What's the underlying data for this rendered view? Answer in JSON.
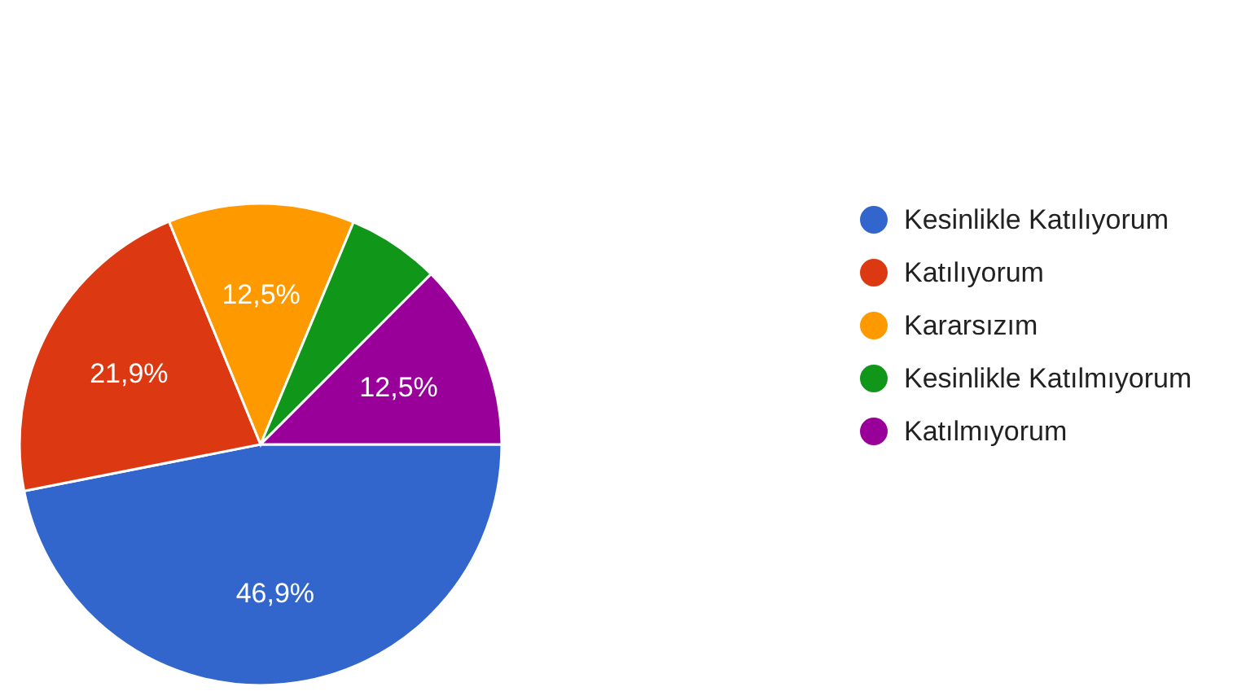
{
  "chart_data": {
    "type": "pie",
    "categories": [
      "Kesinlikle Katılıyorum",
      "Katılıyorum",
      "Kararsızım",
      "Kesinlikle Katılmıyorum",
      "Katılmıyorum"
    ],
    "values": [
      46.9,
      21.9,
      12.5,
      6.2,
      12.5
    ],
    "colors": [
      "#3366cc",
      "#dc3912",
      "#ff9900",
      "#109618",
      "#990099"
    ],
    "value_labels": [
      "46,9%",
      "21,9%",
      "12,5%",
      null,
      "12,5%"
    ],
    "legend": "right"
  }
}
